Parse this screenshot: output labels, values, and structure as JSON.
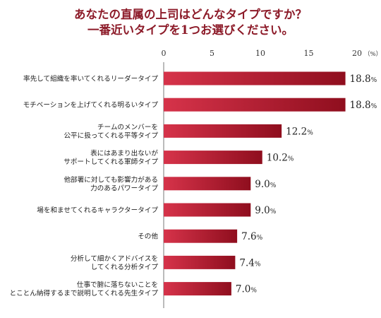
{
  "chart_data": {
    "type": "bar",
    "orientation": "horizontal",
    "title_lines": [
      "あなたの直属の上司はどんなタイプですか？",
      "一番近いタイプを1つお選びください。"
    ],
    "x_unit": "（%）",
    "xlim": [
      0,
      20
    ],
    "xticks": [
      0,
      5,
      10,
      15,
      20
    ],
    "grid": false,
    "colors": {
      "bar_light": "#d6334a",
      "bar_dark": "#8f0e1e",
      "title": "#8c1a28"
    },
    "categories": [
      [
        "率先して組織を率いてくれるリーダータイプ"
      ],
      [
        "モチベーションを上げてくれる明るいタイプ"
      ],
      [
        "チームのメンバーを",
        "公平に扱ってくれる平等タイプ"
      ],
      [
        "表にはあまり出ないが",
        "サポートしてくれる軍師タイプ"
      ],
      [
        "他部署に対しても影響力がある",
        "力のあるパワータイプ"
      ],
      [
        "場を和ませてくれるキャラクタータイプ"
      ],
      [
        "その他"
      ],
      [
        "分析して細かくアドバイスを",
        "してくれる分析タイプ"
      ],
      [
        "仕事で腑に落ちないことを",
        "とことん納得するまで説明してくれる先生タイプ"
      ]
    ],
    "values": [
      18.8,
      18.8,
      12.2,
      10.2,
      9.0,
      9.0,
      7.6,
      7.4,
      7.0
    ],
    "value_labels": [
      "18.8",
      "18.8",
      "12.2",
      "10.2",
      "9.0",
      "9.0",
      "7.6",
      "7.4",
      "7.0"
    ],
    "value_suffix": "%"
  }
}
